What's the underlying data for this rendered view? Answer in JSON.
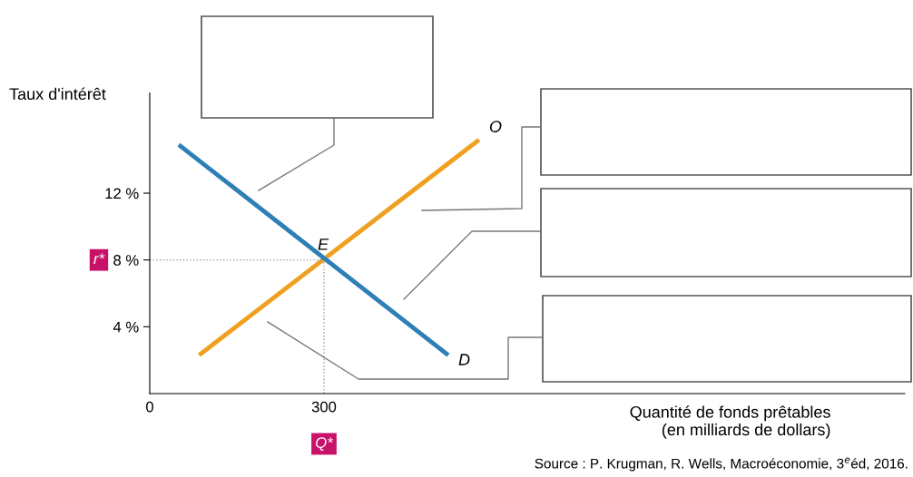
{
  "chart_data": {
    "type": "line",
    "xlabel": "Quantité de fonds prêtables\n(en milliards de dollars)",
    "ylabel": "Taux d'intérêt",
    "series": [
      {
        "name": "O",
        "color": "#f0a020",
        "x": [
          85,
          567
        ],
        "values": [
          2.3,
          15.2
        ]
      },
      {
        "name": "D",
        "color": "#2e7fb5",
        "x": [
          50,
          514
        ],
        "values": [
          14.9,
          2.3
        ]
      }
    ],
    "xlim": [
      0,
      1300
    ],
    "ylim": [
      0,
      18
    ],
    "xticks": [
      0,
      300
    ],
    "yticks": [
      {
        "value": 4,
        "label": "4 %"
      },
      {
        "value": 8,
        "label": "8 %"
      },
      {
        "value": 12,
        "label": "12 %"
      }
    ],
    "ref_lines": [
      {
        "axis": "x",
        "value": 300,
        "label": "Q*",
        "color": "#999999",
        "line_style": "dotted"
      },
      {
        "axis": "y",
        "value": 8,
        "label": "r*",
        "color": "#999999",
        "line_style": "dotted"
      }
    ],
    "annotations": [
      {
        "text": "E",
        "x": 300,
        "y": 8
      },
      "Source : P. Krugman, R. Wells, Macroéconomie, 3$^{e}$éd, 2016."
    ],
    "grid": false,
    "legend": false,
    "marker": "none",
    "line_style": "solid"
  }
}
